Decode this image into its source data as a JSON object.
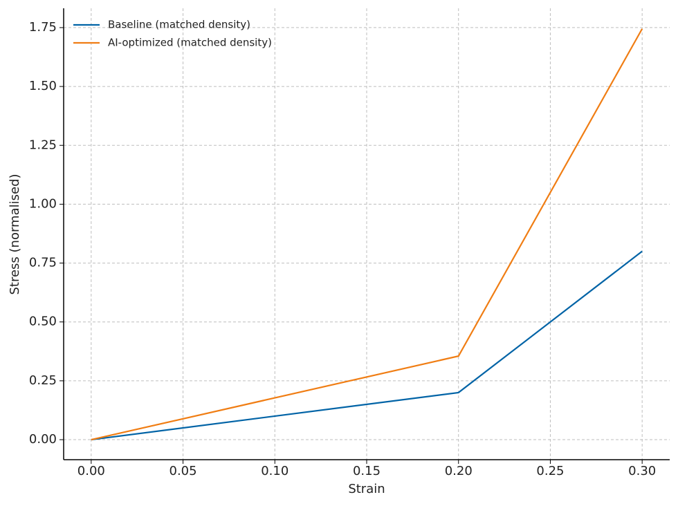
{
  "chart_data": {
    "type": "line",
    "xlabel": "Strain",
    "ylabel": "Stress (normalised)",
    "x": [
      0,
      0.2,
      0.3
    ],
    "series": [
      {
        "name": "Baseline (matched density)",
        "color": "#0063a6",
        "values": [
          0,
          0.2,
          0.8
        ]
      },
      {
        "name": "AI-optimized (matched density)",
        "color": "#f07d13",
        "values": [
          0,
          0.355,
          1.745
        ]
      }
    ],
    "xlim": [
      -0.015,
      0.315
    ],
    "xticks": [
      {
        "value": 0,
        "label": "0.00"
      },
      {
        "value": 0.05,
        "label": "0.05"
      },
      {
        "value": 0.1,
        "label": "0.10"
      },
      {
        "value": 0.15,
        "label": "0.15"
      },
      {
        "value": 0.2,
        "label": "0.20"
      },
      {
        "value": 0.25,
        "label": "0.25"
      },
      {
        "value": 0.3,
        "label": "0.30"
      }
    ],
    "ylim": [
      -0.085,
      1.832
    ],
    "yticks": [
      {
        "value": 0,
        "label": "0.00"
      },
      {
        "value": 0.25,
        "label": "0.25"
      },
      {
        "value": 0.5,
        "label": "0.50"
      },
      {
        "value": 0.75,
        "label": "0.75"
      },
      {
        "value": 1,
        "label": "1.00"
      },
      {
        "value": 1.25,
        "label": "1.25"
      },
      {
        "value": 1.5,
        "label": "1.50"
      },
      {
        "value": 1.75,
        "label": "1.75"
      }
    ],
    "grid": true,
    "legend": "upper left"
  }
}
